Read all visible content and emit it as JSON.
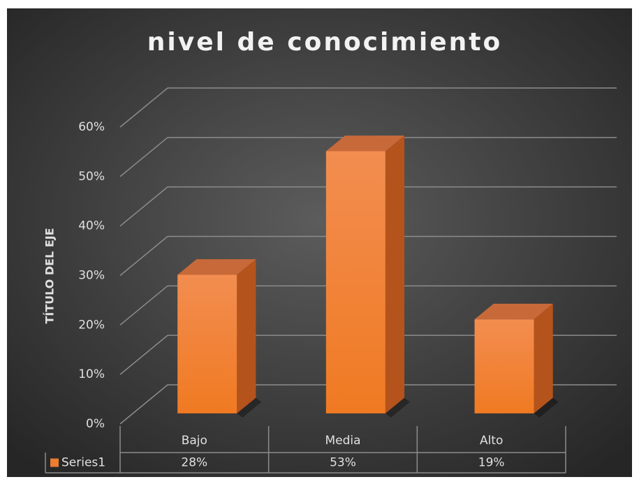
{
  "chart_data": {
    "type": "bar3d",
    "title": "nivel de conocimiento",
    "y_axis_label": "TÍTULO DEL EJE",
    "categories": [
      "Bajo",
      "Media",
      "Alto"
    ],
    "series": [
      {
        "name": "Series1",
        "color": "#ed7d31",
        "values": [
          28,
          53,
          19
        ],
        "value_labels": [
          "28%",
          "53%",
          "19%"
        ]
      }
    ],
    "ylim": [
      0,
      60
    ],
    "yticks": [
      {
        "value": 0,
        "label": "0%"
      },
      {
        "value": 10,
        "label": "10%"
      },
      {
        "value": 20,
        "label": "20%"
      },
      {
        "value": 30,
        "label": "30%"
      },
      {
        "value": 40,
        "label": "40%"
      },
      {
        "value": 50,
        "label": "50%"
      },
      {
        "value": 60,
        "label": "60%"
      }
    ],
    "grid": true,
    "data_table": true
  }
}
